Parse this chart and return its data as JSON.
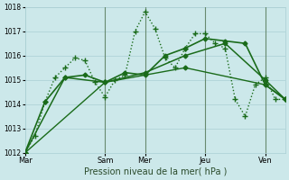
{
  "xlabel": "Pression niveau de la mer( hPa )",
  "ylim": [
    1012,
    1018
  ],
  "yticks": [
    1012,
    1013,
    1014,
    1015,
    1016,
    1017,
    1018
  ],
  "background_color": "#cce8ea",
  "grid_color": "#aacfd4",
  "line_color": "#1a6b1a",
  "vline_color": "#557755",
  "day_labels": [
    "Mar",
    "Sam",
    "Mer",
    "Jeu",
    "Ven"
  ],
  "day_positions": [
    0,
    96,
    144,
    216,
    288
  ],
  "xlim": [
    0,
    312
  ],
  "series": [
    {
      "x": [
        0,
        12,
        24,
        36,
        48,
        60,
        72,
        84,
        96,
        108,
        120,
        132,
        144,
        156,
        168,
        180,
        192,
        204,
        216,
        228,
        240,
        252,
        264,
        276,
        288,
        300,
        312
      ],
      "y": [
        1012.0,
        1012.7,
        1014.1,
        1015.1,
        1015.5,
        1015.9,
        1015.8,
        1014.9,
        1014.3,
        1015.0,
        1015.2,
        1017.0,
        1017.8,
        1017.1,
        1015.9,
        1015.5,
        1016.3,
        1016.9,
        1016.9,
        1016.5,
        1016.3,
        1014.2,
        1013.5,
        1014.8,
        1015.1,
        1014.2,
        1014.2
      ],
      "ls": ":",
      "lw": 1.0,
      "marker": "+",
      "ms": 4
    },
    {
      "x": [
        0,
        24,
        48,
        72,
        96,
        120,
        144,
        168,
        192,
        216,
        240,
        264,
        288,
        312
      ],
      "y": [
        1012.0,
        1014.1,
        1015.1,
        1015.2,
        1014.9,
        1015.3,
        1015.2,
        1016.0,
        1016.3,
        1016.7,
        1016.6,
        1016.5,
        1014.8,
        1014.2
      ],
      "ls": "-",
      "lw": 1.2,
      "marker": "D",
      "ms": 2.5
    },
    {
      "x": [
        0,
        48,
        96,
        144,
        192,
        240,
        288,
        312
      ],
      "y": [
        1012.0,
        1015.1,
        1014.9,
        1015.3,
        1016.0,
        1016.5,
        1015.0,
        1014.2
      ],
      "ls": "-",
      "lw": 1.1,
      "marker": "D",
      "ms": 2.5
    },
    {
      "x": [
        0,
        96,
        192,
        288,
        312
      ],
      "y": [
        1012.0,
        1014.9,
        1015.5,
        1014.8,
        1014.2
      ],
      "ls": "-",
      "lw": 1.0,
      "marker": "D",
      "ms": 2.5
    }
  ]
}
